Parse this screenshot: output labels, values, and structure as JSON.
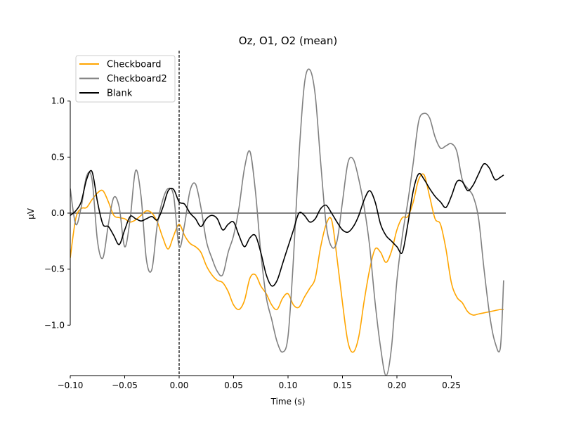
{
  "chart_data": {
    "type": "line",
    "title": "Oz, O1, O2 (mean)",
    "xlabel": "Time (s)",
    "ylabel": "µV",
    "xlim": [
      -0.1,
      0.3
    ],
    "ylim": [
      -1.45,
      1.45
    ],
    "xticks": [
      {
        "value": -0.1,
        "label": "−0.10"
      },
      {
        "value": -0.05,
        "label": "−0.05"
      },
      {
        "value": 0.0,
        "label": "0.00"
      },
      {
        "value": 0.05,
        "label": "0.05"
      },
      {
        "value": 0.1,
        "label": "0.10"
      },
      {
        "value": 0.15,
        "label": "0.15"
      },
      {
        "value": 0.2,
        "label": "0.20"
      },
      {
        "value": 0.25,
        "label": "0.25"
      }
    ],
    "yticks": [
      {
        "value": -1.0,
        "label": "−1.0"
      },
      {
        "value": -0.5,
        "label": "−0.5"
      },
      {
        "value": 0.0,
        "label": "0.0"
      },
      {
        "value": 0.5,
        "label": "0.5"
      },
      {
        "value": 1.0,
        "label": "1.0"
      }
    ],
    "zero_line": true,
    "event_line_x": 0.0,
    "grid": false,
    "legend_position": "upper-left",
    "series": [
      {
        "name": "Checkboard",
        "color": "#ffa500",
        "x": [
          -0.1,
          -0.095,
          -0.09,
          -0.085,
          -0.08,
          -0.075,
          -0.07,
          -0.065,
          -0.06,
          -0.055,
          -0.05,
          -0.045,
          -0.04,
          -0.035,
          -0.03,
          -0.025,
          -0.02,
          -0.015,
          -0.01,
          -0.005,
          0.0,
          0.005,
          0.01,
          0.015,
          0.02,
          0.025,
          0.03,
          0.035,
          0.04,
          0.045,
          0.05,
          0.055,
          0.06,
          0.065,
          0.07,
          0.075,
          0.08,
          0.085,
          0.09,
          0.095,
          0.1,
          0.105,
          0.11,
          0.115,
          0.12,
          0.125,
          0.13,
          0.135,
          0.14,
          0.145,
          0.15,
          0.155,
          0.16,
          0.165,
          0.17,
          0.175,
          0.18,
          0.185,
          0.19,
          0.195,
          0.2,
          0.205,
          0.21,
          0.215,
          0.22,
          0.225,
          0.23,
          0.235,
          0.24,
          0.245,
          0.25,
          0.255,
          0.26,
          0.265,
          0.27,
          0.275,
          0.28,
          0.285,
          0.29,
          0.295,
          0.298
        ],
        "y": [
          -0.4,
          -0.05,
          0.04,
          0.05,
          0.12,
          0.18,
          0.2,
          0.1,
          -0.02,
          -0.04,
          -0.05,
          -0.08,
          -0.06,
          -0.02,
          0.02,
          0.0,
          -0.08,
          -0.22,
          -0.32,
          -0.2,
          -0.1,
          -0.2,
          -0.27,
          -0.3,
          -0.35,
          -0.47,
          -0.55,
          -0.6,
          -0.62,
          -0.7,
          -0.82,
          -0.86,
          -0.78,
          -0.58,
          -0.55,
          -0.65,
          -0.72,
          -0.82,
          -0.86,
          -0.76,
          -0.72,
          -0.82,
          -0.84,
          -0.75,
          -0.67,
          -0.58,
          -0.3,
          -0.1,
          -0.06,
          -0.4,
          -0.8,
          -1.15,
          -1.24,
          -1.1,
          -0.78,
          -0.5,
          -0.32,
          -0.35,
          -0.44,
          -0.34,
          -0.15,
          -0.04,
          -0.03,
          0.1,
          0.3,
          0.34,
          0.15,
          -0.05,
          -0.1,
          -0.32,
          -0.62,
          -0.75,
          -0.8,
          -0.88,
          -0.91,
          -0.9,
          -0.89,
          -0.88,
          -0.87,
          -0.86,
          -0.86
        ]
      },
      {
        "name": "Checkboard2",
        "color": "#808080",
        "x": [
          -0.1,
          -0.095,
          -0.09,
          -0.085,
          -0.08,
          -0.075,
          -0.07,
          -0.065,
          -0.06,
          -0.055,
          -0.05,
          -0.045,
          -0.04,
          -0.035,
          -0.03,
          -0.025,
          -0.02,
          -0.015,
          -0.01,
          -0.005,
          0.0,
          0.005,
          0.01,
          0.015,
          0.02,
          0.025,
          0.03,
          0.035,
          0.04,
          0.045,
          0.05,
          0.055,
          0.06,
          0.065,
          0.07,
          0.075,
          0.08,
          0.085,
          0.09,
          0.095,
          0.1,
          0.105,
          0.11,
          0.115,
          0.12,
          0.125,
          0.13,
          0.135,
          0.14,
          0.145,
          0.15,
          0.155,
          0.16,
          0.165,
          0.17,
          0.175,
          0.18,
          0.185,
          0.19,
          0.195,
          0.2,
          0.205,
          0.21,
          0.215,
          0.22,
          0.225,
          0.23,
          0.235,
          0.24,
          0.245,
          0.25,
          0.255,
          0.26,
          0.265,
          0.27,
          0.275,
          0.28,
          0.285,
          0.29,
          0.295,
          0.298
        ],
        "y": [
          0.22,
          -0.1,
          0.05,
          0.33,
          0.3,
          -0.25,
          -0.4,
          -0.1,
          0.14,
          0.05,
          -0.3,
          -0.05,
          0.38,
          0.15,
          -0.42,
          -0.5,
          -0.1,
          0.12,
          0.22,
          0.15,
          -0.3,
          -0.1,
          0.2,
          0.26,
          0.05,
          -0.25,
          -0.4,
          -0.52,
          -0.55,
          -0.35,
          -0.2,
          0.05,
          0.4,
          0.55,
          0.2,
          -0.35,
          -0.75,
          -0.95,
          -1.15,
          -1.24,
          -1.1,
          -0.4,
          0.5,
          1.15,
          1.28,
          1.05,
          0.45,
          -0.1,
          -0.3,
          -0.25,
          0.1,
          0.45,
          0.48,
          0.3,
          0.05,
          -0.3,
          -0.8,
          -1.2,
          -1.45,
          -1.2,
          -0.6,
          -0.2,
          0.1,
          0.45,
          0.82,
          0.89,
          0.85,
          0.68,
          0.58,
          0.6,
          0.62,
          0.55,
          0.3,
          0.22,
          0.15,
          -0.05,
          -0.5,
          -0.9,
          -1.15,
          -1.2,
          -0.6
        ]
      },
      {
        "name": "Blank",
        "color": "#000000",
        "x": [
          -0.1,
          -0.095,
          -0.09,
          -0.085,
          -0.08,
          -0.075,
          -0.07,
          -0.065,
          -0.06,
          -0.055,
          -0.05,
          -0.045,
          -0.04,
          -0.035,
          -0.03,
          -0.025,
          -0.02,
          -0.015,
          -0.01,
          -0.005,
          0.0,
          0.005,
          0.01,
          0.015,
          0.02,
          0.025,
          0.03,
          0.035,
          0.04,
          0.045,
          0.05,
          0.055,
          0.06,
          0.065,
          0.07,
          0.075,
          0.08,
          0.085,
          0.09,
          0.095,
          0.1,
          0.105,
          0.11,
          0.115,
          0.12,
          0.125,
          0.13,
          0.135,
          0.14,
          0.145,
          0.15,
          0.155,
          0.16,
          0.165,
          0.17,
          0.175,
          0.18,
          0.185,
          0.19,
          0.195,
          0.2,
          0.205,
          0.21,
          0.215,
          0.22,
          0.225,
          0.23,
          0.235,
          0.24,
          0.245,
          0.25,
          0.255,
          0.26,
          0.265,
          0.27,
          0.275,
          0.28,
          0.285,
          0.29,
          0.295,
          0.298
        ],
        "y": [
          -0.02,
          0.02,
          0.1,
          0.3,
          0.37,
          0.1,
          -0.1,
          -0.12,
          -0.2,
          -0.28,
          -0.15,
          -0.03,
          -0.05,
          -0.07,
          -0.05,
          -0.03,
          -0.06,
          0.05,
          0.2,
          0.21,
          0.1,
          0.08,
          0.0,
          -0.05,
          -0.12,
          -0.05,
          -0.02,
          -0.05,
          -0.15,
          -0.1,
          -0.08,
          -0.2,
          -0.3,
          -0.22,
          -0.2,
          -0.35,
          -0.55,
          -0.65,
          -0.6,
          -0.45,
          -0.3,
          -0.15,
          0.0,
          -0.02,
          -0.08,
          -0.05,
          0.04,
          0.07,
          0.0,
          -0.08,
          -0.15,
          -0.17,
          -0.12,
          -0.02,
          0.12,
          0.2,
          0.1,
          -0.1,
          -0.2,
          -0.25,
          -0.3,
          -0.35,
          -0.1,
          0.2,
          0.35,
          0.3,
          0.22,
          0.15,
          0.1,
          0.05,
          0.15,
          0.28,
          0.28,
          0.2,
          0.25,
          0.35,
          0.44,
          0.4,
          0.3,
          0.32,
          0.34
        ]
      }
    ]
  }
}
